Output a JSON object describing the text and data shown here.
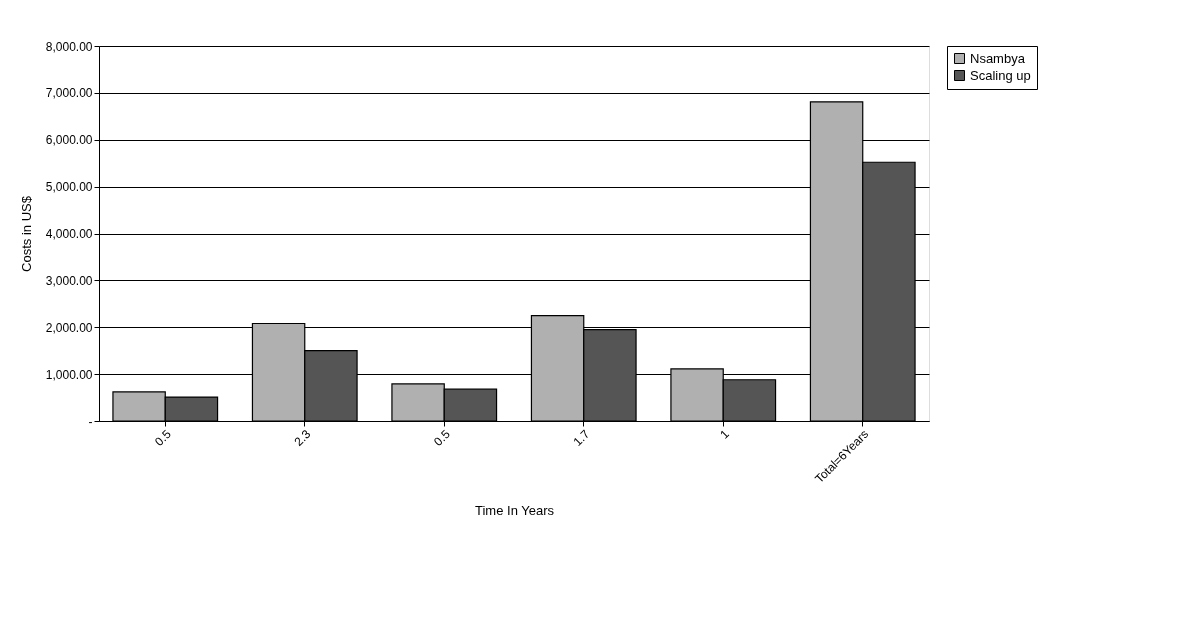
{
  "chart_data": {
    "type": "bar",
    "xlabel": "Time In Years",
    "ylabel": "Costs  in US$",
    "categories": [
      "0.5",
      "2.3",
      "0.5",
      "1.7",
      "1",
      "Total=6Years"
    ],
    "series": [
      {
        "name": "Nsambya",
        "color": "#b0b0b0",
        "values": [
          620,
          2080,
          790,
          2250,
          1110,
          6810
        ]
      },
      {
        "name": "Scaling up",
        "color": "#555555",
        "values": [
          510,
          1500,
          680,
          1950,
          880,
          5520
        ]
      }
    ],
    "ylim": [
      0,
      8000
    ],
    "yticks": [
      {
        "value": 0,
        "label": "-"
      },
      {
        "value": 1000,
        "label": "1,000.00"
      },
      {
        "value": 2000,
        "label": "2,000.00"
      },
      {
        "value": 3000,
        "label": "3,000.00"
      },
      {
        "value": 4000,
        "label": "4,000.00"
      },
      {
        "value": 5000,
        "label": "5,000.00"
      },
      {
        "value": 6000,
        "label": "6,000.00"
      },
      {
        "value": 7000,
        "label": "7,000.00"
      },
      {
        "value": 8000,
        "label": "8,000.00"
      }
    ],
    "grid": "y",
    "legend": "right"
  }
}
